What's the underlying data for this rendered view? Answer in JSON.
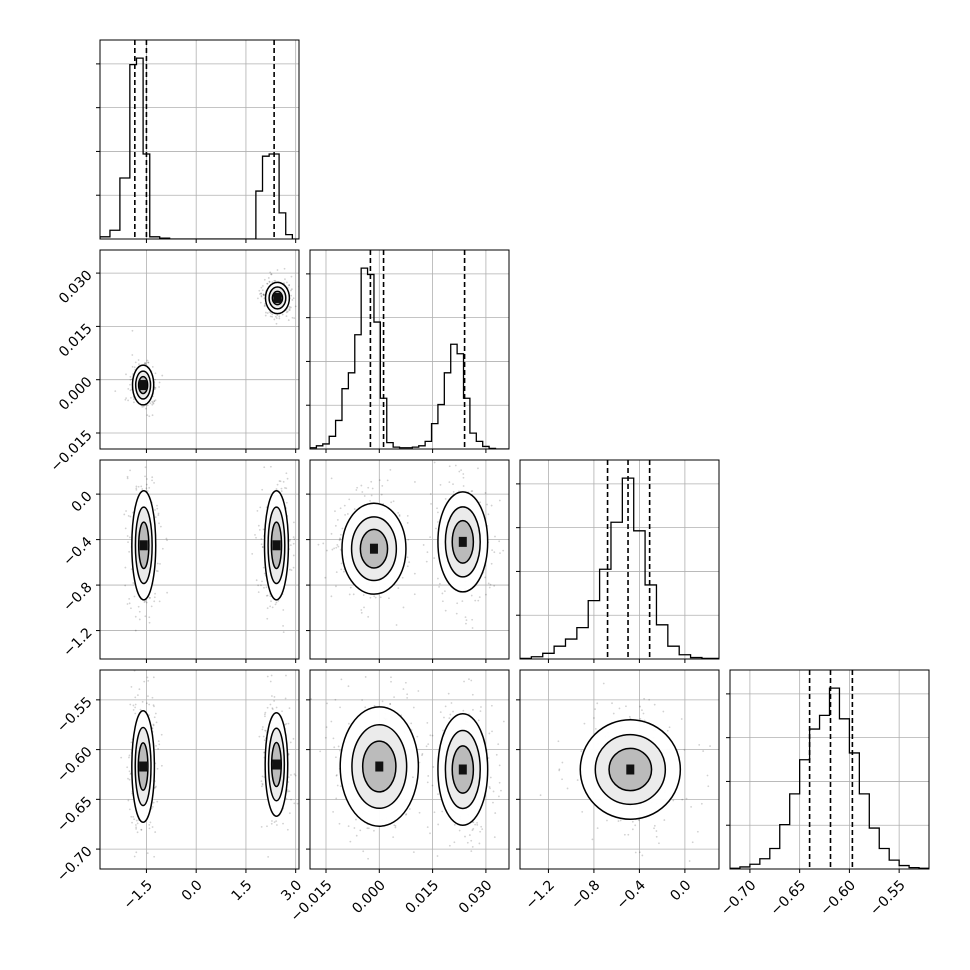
{
  "chart_data": {
    "type": "corner",
    "n_parameters": 4,
    "params": [
      {
        "range": [
          -2.9,
          3.1
        ],
        "ticks": [
          -1.5,
          0.0,
          1.5,
          3.0
        ],
        "tick_labels": [
          "−1.5",
          "0.0",
          "1.5",
          "3.0"
        ]
      },
      {
        "range": [
          -0.0195,
          0.0365
        ],
        "ticks": [
          -0.015,
          0.0,
          0.015,
          0.03
        ],
        "tick_labels": [
          "−0.015",
          "0.000",
          "0.015",
          "0.030"
        ]
      },
      {
        "range": [
          -1.45,
          0.3
        ],
        "ticks": [
          -1.2,
          -0.8,
          -0.4,
          0.0
        ],
        "tick_labels": [
          "−1.2",
          "−0.8",
          "−0.4",
          "0.0"
        ]
      },
      {
        "range": [
          -0.72,
          -0.52
        ],
        "ticks": [
          -0.7,
          -0.65,
          -0.6,
          -0.55
        ],
        "tick_labels": [
          "−0.70",
          "−0.65",
          "−0.60",
          "−0.55"
        ]
      }
    ],
    "quantiles": [
      [
        -1.85,
        -1.5,
        2.35
      ],
      [
        -0.0025,
        0.0012,
        0.024
      ],
      [
        -0.68,
        -0.5,
        -0.31
      ],
      [
        -0.64,
        -0.619,
        -0.597
      ]
    ],
    "histograms": [
      {
        "bins": [
          -2.9,
          -2.6,
          -2.3,
          -2.0,
          -1.8,
          -1.6,
          -1.4,
          -1.1,
          -0.8,
          1.8,
          2.0,
          2.2,
          2.5,
          2.7,
          2.9,
          3.1
        ],
        "counts": [
          0.5,
          2.0,
          14.0,
          40.0,
          41.5,
          19.5,
          0.5,
          0.2,
          0.0,
          11.0,
          19.0,
          19.5,
          6.0,
          1.0,
          0.0
        ]
      },
      {
        "bins": [
          -0.0195,
          -0.0177,
          -0.0159,
          -0.0141,
          -0.0123,
          -0.0105,
          -0.0087,
          -0.0069,
          -0.0051,
          -0.0033,
          -0.0015,
          0.0003,
          0.0021,
          0.0039,
          0.0057,
          0.0075,
          0.0093,
          0.0111,
          0.0129,
          0.0147,
          0.0165,
          0.0183,
          0.0201,
          0.0219,
          0.0237,
          0.0255,
          0.0273,
          0.0291,
          0.0309,
          0.0327,
          0.0345,
          0.0365
        ],
        "counts": [
          0.2,
          0.5,
          0.8,
          2.0,
          4.5,
          9.5,
          12.0,
          18.0,
          28.5,
          27.5,
          20.0,
          8.0,
          1.0,
          0.3,
          0.2,
          0.2,
          0.3,
          0.5,
          1.2,
          4.0,
          7.0,
          12.0,
          16.5,
          15.0,
          8.0,
          2.5,
          1.2,
          0.4,
          0.1,
          0.0,
          0.0
        ]
      },
      {
        "bins": [
          -1.45,
          -1.35,
          -1.25,
          -1.15,
          -1.05,
          -0.95,
          -0.85,
          -0.75,
          -0.65,
          -0.55,
          -0.45,
          -0.35,
          -0.25,
          -0.15,
          -0.05,
          0.05,
          0.15,
          0.3
        ],
        "counts": [
          0.2,
          0.8,
          2.0,
          4.5,
          7.0,
          11.0,
          20.5,
          31.5,
          48.0,
          63.5,
          45.0,
          26.0,
          12.0,
          4.5,
          1.5,
          0.5,
          0.2
        ]
      },
      {
        "bins": [
          -0.72,
          -0.71,
          -0.7,
          -0.69,
          -0.68,
          -0.67,
          -0.66,
          -0.65,
          -0.64,
          -0.63,
          -0.62,
          -0.61,
          -0.6,
          -0.59,
          -0.58,
          -0.57,
          -0.56,
          -0.55,
          -0.54,
          -0.53,
          -0.52
        ],
        "counts": [
          0.1,
          0.3,
          0.7,
          1.5,
          3.0,
          6.5,
          11.0,
          16.0,
          20.5,
          22.5,
          26.5,
          22.0,
          17.0,
          11.0,
          6.0,
          3.0,
          1.3,
          0.5,
          0.2,
          0.1
        ]
      }
    ],
    "clusters": [
      {
        "x": -1.6,
        "y": -0.0015,
        "sx": 0.16,
        "sy": 0.0028
      },
      {
        "x": 2.45,
        "y": 0.023,
        "sx": 0.18,
        "sy": 0.0022
      },
      {
        "x": -1.58,
        "y": -0.45,
        "sx": 0.18,
        "sy": 0.24
      },
      {
        "x": 2.42,
        "y": -0.45,
        "sx": 0.18,
        "sy": 0.24
      },
      {
        "x": -0.0015,
        "y": -0.48,
        "sx": 0.0045,
        "sy": 0.2
      },
      {
        "x": 0.0235,
        "y": -0.42,
        "sx": 0.0035,
        "sy": 0.22
      },
      {
        "x": -1.6,
        "y": -0.617,
        "sx": 0.17,
        "sy": 0.028
      },
      {
        "x": 2.42,
        "y": -0.615,
        "sx": 0.17,
        "sy": 0.026
      },
      {
        "x": 0.0,
        "y": -0.617,
        "sx": 0.0055,
        "sy": 0.03
      },
      {
        "x": 0.0235,
        "y": -0.62,
        "sx": 0.0035,
        "sy": 0.028
      },
      {
        "x": -0.48,
        "y": -0.62,
        "sx": 0.22,
        "sy": 0.025
      }
    ]
  }
}
